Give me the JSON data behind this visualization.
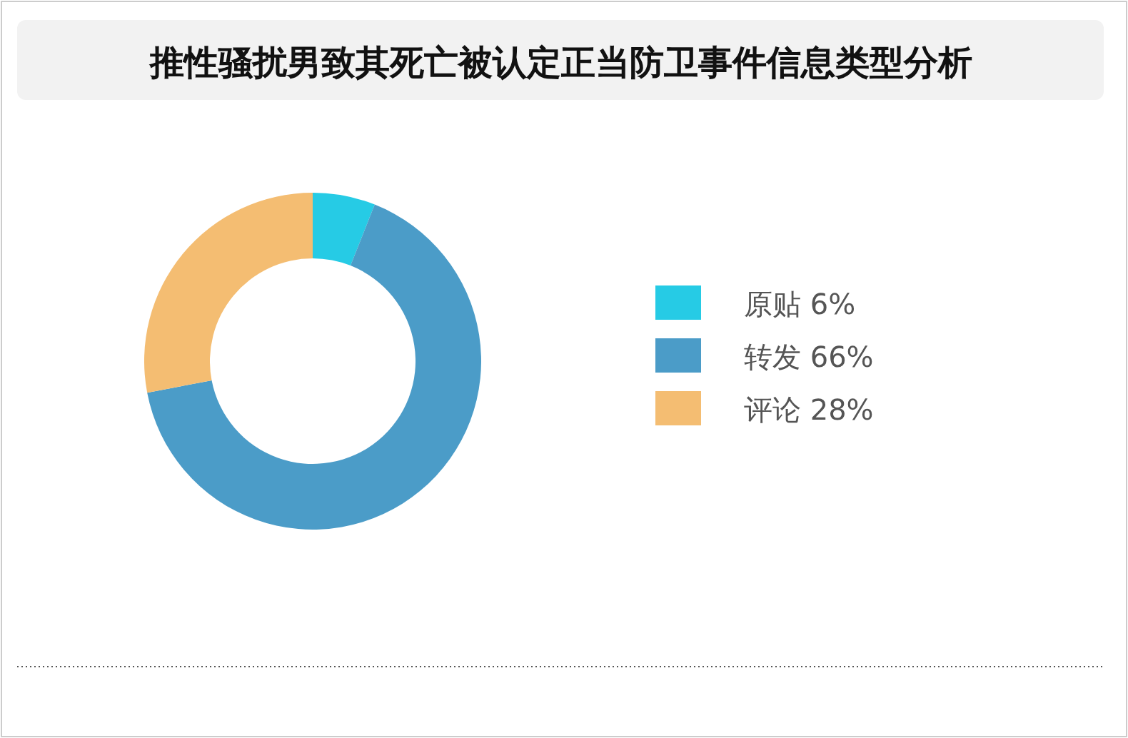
{
  "chart_data": {
    "type": "donut",
    "title": "推性骚扰男致其死亡被认定正当防卫事件信息类型分析",
    "categories": [
      "原贴",
      "转发",
      "评论"
    ],
    "values": [
      6,
      66,
      28
    ],
    "value_labels": [
      "6%",
      "66%",
      "28%"
    ],
    "colors": [
      "#26cbe5",
      "#4b9cc8",
      "#f4bd72"
    ],
    "legend": "right"
  }
}
